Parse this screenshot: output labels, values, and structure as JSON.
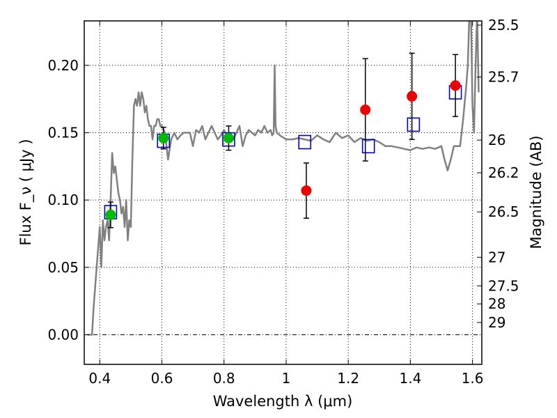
{
  "chart_data": {
    "type": "scatter",
    "xlabel": "Wavelength  λ (μm)",
    "ylabel": "Flux  F_ν  ( μJy )",
    "ylabel_right": "Magnitude (AB)",
    "xlim": [
      0.35,
      1.63
    ],
    "ylim": [
      -0.022,
      0.233
    ],
    "grid": true,
    "x_ticks": [
      {
        "value": 0.4,
        "label": "0.4"
      },
      {
        "value": 0.6,
        "label": "0.6"
      },
      {
        "value": 0.8,
        "label": "0.8"
      },
      {
        "value": 1.0,
        "label": "1"
      },
      {
        "value": 1.2,
        "label": "1.2"
      },
      {
        "value": 1.4,
        "label": "1.4"
      },
      {
        "value": 1.6,
        "label": "1.6"
      }
    ],
    "y_ticks": [
      {
        "value": 0.0,
        "label": "0.00"
      },
      {
        "value": 0.05,
        "label": "0.05"
      },
      {
        "value": 0.1,
        "label": "0.10"
      },
      {
        "value": 0.15,
        "label": "0.15"
      },
      {
        "value": 0.2,
        "label": "0.20"
      }
    ],
    "right_ticks": [
      {
        "flux": 0.2299,
        "label": "25.5"
      },
      {
        "flux": 0.1913,
        "label": "25.7"
      },
      {
        "flux": 0.1445,
        "label": "26"
      },
      {
        "flux": 0.1202,
        "label": "26.2"
      },
      {
        "flux": 0.0912,
        "label": "26.5"
      },
      {
        "flux": 0.0575,
        "label": "27"
      },
      {
        "flux": 0.0363,
        "label": "27.5"
      },
      {
        "flux": 0.0229,
        "label": "28"
      },
      {
        "flux": 0.0091,
        "label": "29"
      }
    ],
    "series": [
      {
        "kind": "line",
        "color": "#808080",
        "x": [
          0.36,
          0.375,
          0.38,
          0.39,
          0.4,
          0.405,
          0.41,
          0.415,
          0.42,
          0.425,
          0.43,
          0.435,
          0.44,
          0.445,
          0.45,
          0.455,
          0.46,
          0.465,
          0.47,
          0.475,
          0.48,
          0.485,
          0.49,
          0.495,
          0.5,
          0.505,
          0.51,
          0.515,
          0.52,
          0.525,
          0.53,
          0.535,
          0.54,
          0.545,
          0.55,
          0.555,
          0.56,
          0.565,
          0.57,
          0.575,
          0.58,
          0.585,
          0.59,
          0.595,
          0.6,
          0.61,
          0.62,
          0.63,
          0.64,
          0.65,
          0.66,
          0.67,
          0.68,
          0.69,
          0.7,
          0.71,
          0.72,
          0.73,
          0.74,
          0.75,
          0.76,
          0.77,
          0.78,
          0.79,
          0.8,
          0.81,
          0.82,
          0.83,
          0.84,
          0.85,
          0.86,
          0.87,
          0.88,
          0.89,
          0.9,
          0.91,
          0.92,
          0.93,
          0.94,
          0.95,
          0.955,
          0.96,
          0.963,
          0.966,
          0.97,
          0.98,
          1.0,
          1.02,
          1.04,
          1.06,
          1.08,
          1.1,
          1.12,
          1.14,
          1.16,
          1.18,
          1.2,
          1.22,
          1.24,
          1.26,
          1.28,
          1.3,
          1.32,
          1.34,
          1.36,
          1.38,
          1.4,
          1.42,
          1.44,
          1.46,
          1.48,
          1.5,
          1.51,
          1.52,
          1.53,
          1.54,
          1.55,
          1.56,
          1.57,
          1.58,
          1.585,
          1.59,
          1.595,
          1.6,
          1.605,
          1.61,
          1.615,
          1.62
        ],
        "values": [
          0.0,
          0.0,
          0.02,
          0.05,
          0.08,
          0.05,
          0.085,
          0.07,
          0.08,
          0.085,
          0.07,
          0.1,
          0.135,
          0.12,
          0.125,
          0.115,
          0.105,
          0.1,
          0.09,
          0.095,
          0.08,
          0.1,
          0.07,
          0.085,
          0.08,
          0.13,
          0.17,
          0.175,
          0.17,
          0.18,
          0.17,
          0.18,
          0.175,
          0.165,
          0.17,
          0.16,
          0.155,
          0.155,
          0.145,
          0.155,
          0.155,
          0.16,
          0.16,
          0.155,
          0.155,
          0.15,
          0.13,
          0.145,
          0.15,
          0.145,
          0.148,
          0.15,
          0.15,
          0.15,
          0.14,
          0.152,
          0.15,
          0.155,
          0.145,
          0.15,
          0.155,
          0.15,
          0.145,
          0.148,
          0.152,
          0.148,
          0.15,
          0.145,
          0.15,
          0.155,
          0.14,
          0.148,
          0.152,
          0.15,
          0.148,
          0.152,
          0.15,
          0.155,
          0.15,
          0.152,
          0.148,
          0.15,
          0.2,
          0.155,
          0.15,
          0.148,
          0.145,
          0.145,
          0.146,
          0.145,
          0.144,
          0.148,
          0.145,
          0.143,
          0.15,
          0.146,
          0.148,
          0.143,
          0.146,
          0.144,
          0.145,
          0.143,
          0.14,
          0.14,
          0.139,
          0.138,
          0.137,
          0.139,
          0.138,
          0.139,
          0.138,
          0.14,
          0.13,
          0.122,
          0.13,
          0.14,
          0.14,
          0.14,
          0.16,
          0.185,
          0.2,
          0.24,
          0.24,
          0.17,
          0.15,
          0.2,
          0.24,
          0.18
        ]
      },
      {
        "kind": "open-square",
        "color": "#0000cc",
        "x": [
          0.435,
          0.605,
          0.815,
          1.06,
          1.265,
          1.41,
          1.545
        ],
        "values": [
          0.091,
          0.144,
          0.145,
          0.143,
          0.14,
          0.156,
          0.18
        ]
      },
      {
        "kind": "errorbar-point",
        "color": "#00bb00",
        "x": [
          0.435,
          0.605,
          0.815
        ],
        "values": [
          0.089,
          0.146,
          0.146
        ],
        "err": [
          0.0095,
          0.008,
          0.009
        ]
      },
      {
        "kind": "errorbar-point",
        "color": "#ee0000",
        "x": [
          1.065,
          1.255,
          1.405,
          1.545
        ],
        "values": [
          0.107,
          0.167,
          0.177,
          0.185
        ],
        "err": [
          0.0205,
          0.038,
          0.032,
          0.023
        ]
      }
    ]
  }
}
